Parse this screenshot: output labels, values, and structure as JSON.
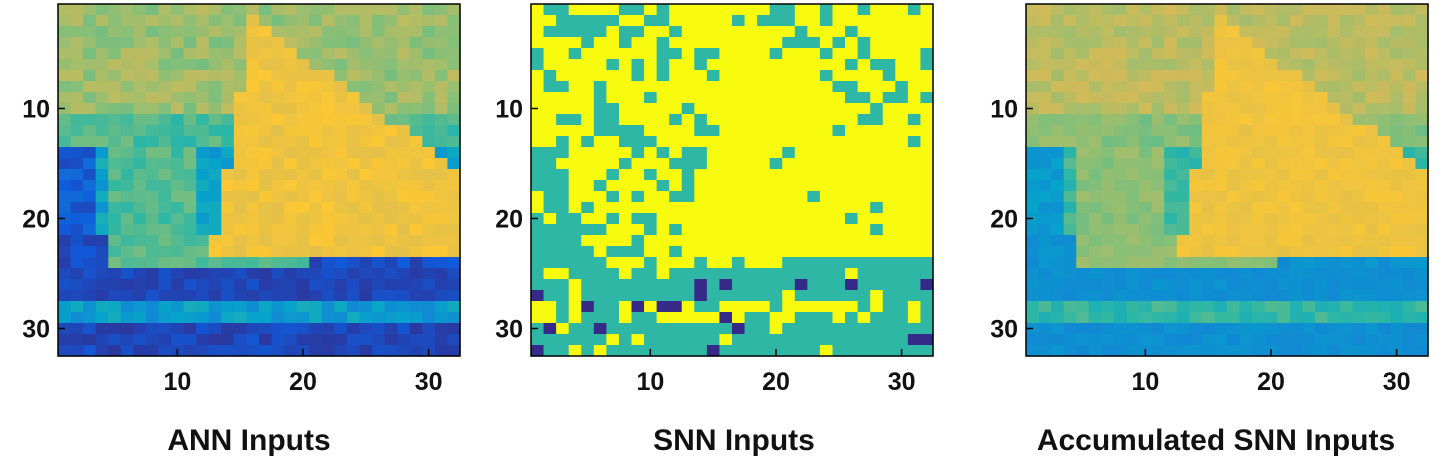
{
  "chart_data": [
    {
      "type": "heatmap",
      "title": "ANN Inputs",
      "grid_size": [
        32,
        32
      ],
      "x_ticks": [
        10,
        20,
        30
      ],
      "y_ticks": [
        10,
        20,
        30
      ],
      "colormap": "parula",
      "content": "sailboat image, continuous intensity values"
    },
    {
      "type": "heatmap",
      "title": "SNN Inputs",
      "grid_size": [
        32,
        32
      ],
      "x_ticks": [
        10,
        20,
        30
      ],
      "y_ticks": [
        10,
        20,
        30
      ],
      "colormap": "parula",
      "content": "binary spike map of the sailboat image"
    },
    {
      "type": "heatmap",
      "title": "Accumulated SNN Inputs",
      "grid_size": [
        32,
        32
      ],
      "x_ticks": [
        10,
        20,
        30
      ],
      "y_ticks": [
        10,
        20,
        30
      ],
      "colormap": "parula",
      "content": "accumulated spikes approximating the sailboat image"
    }
  ],
  "colors": {
    "parula_stops": [
      "#352a87",
      "#0f5cdd",
      "#1481d6",
      "#06a4ca",
      "#2eb7a4",
      "#87bf77",
      "#d1bb59",
      "#fec832",
      "#f9fb0e"
    ],
    "spike_on": "#f9fb0e",
    "spike_off": "#2eb7a4",
    "spike_low": "#352a87"
  }
}
